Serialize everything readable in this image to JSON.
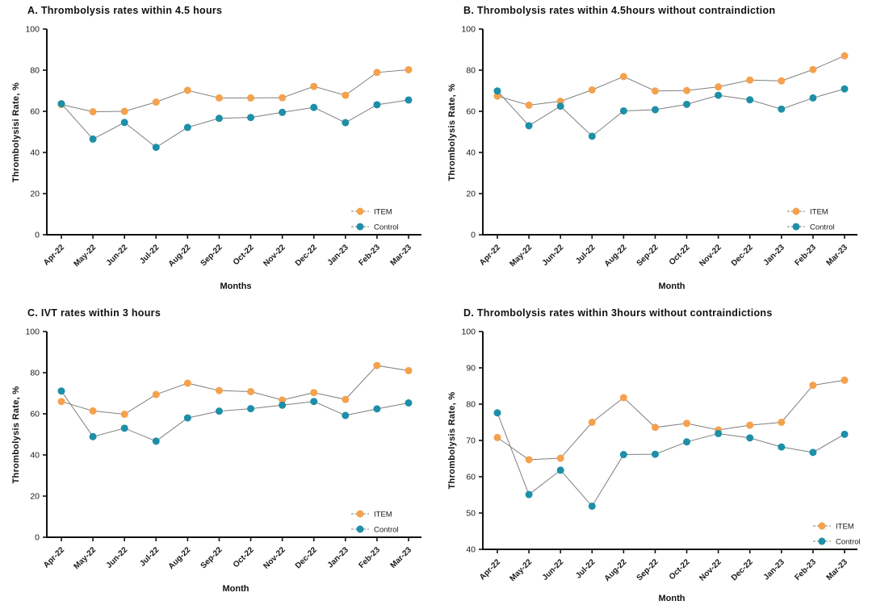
{
  "figure": {
    "background": "#ffffff"
  },
  "colors": {
    "item": "#F5A14D",
    "control": "#1D8FA8",
    "connector": "#7f7f7f",
    "axis": "#111111"
  },
  "chart_data": [
    {
      "type": "line",
      "panel": "A",
      "title": "A. Thrombolysis rates within 4.5 hours",
      "xlabel": "Months",
      "ylabel": "Thrombolysisi Rate, %",
      "ylim": [
        0,
        100
      ],
      "ytick_step": 20,
      "grid": false,
      "legend_position": "bottom-right",
      "categories": [
        "Apr-22",
        "May-22",
        "Jun-22",
        "Jul-22",
        "Aug-22",
        "Sep-22",
        "Oct-22",
        "Nov-22",
        "Dec-22",
        "Jan-23",
        "Feb-23",
        "Mar-23"
      ],
      "series": [
        {
          "name": "ITEM",
          "color": "#F5A14D",
          "values": [
            63.3,
            59.8,
            60.0,
            64.5,
            70.2,
            66.5,
            66.5,
            66.6,
            72.1,
            67.8,
            78.9,
            80.2
          ]
        },
        {
          "name": "Control",
          "color": "#1D8FA8",
          "values": [
            63.7,
            46.5,
            54.6,
            42.5,
            52.2,
            56.6,
            57.0,
            59.5,
            61.9,
            54.5,
            63.2,
            65.5
          ]
        }
      ]
    },
    {
      "type": "line",
      "panel": "B",
      "title": "B. Thrombolysis rates within 4.5hours without contraindiction",
      "xlabel": "Month",
      "ylabel": "Thrombolysis Rate, %",
      "ylim": [
        0,
        100
      ],
      "ytick_step": 20,
      "grid": false,
      "legend_position": "bottom-right",
      "categories": [
        "Apr-22",
        "May-22",
        "Jun-22",
        "Jul-22",
        "Aug-22",
        "Sep-22",
        "Oct-22",
        "Nov-22",
        "Dec-22",
        "Jan-23",
        "Feb-23",
        "Mar-23"
      ],
      "series": [
        {
          "name": "ITEM",
          "color": "#F5A14D",
          "values": [
            67.4,
            63.0,
            64.9,
            70.4,
            76.9,
            69.9,
            70.1,
            71.9,
            75.2,
            74.8,
            80.3,
            87.0
          ]
        },
        {
          "name": "Control",
          "color": "#1D8FA8",
          "values": [
            69.9,
            53.0,
            62.5,
            47.9,
            60.2,
            60.8,
            63.4,
            67.8,
            65.6,
            61.1,
            66.5,
            70.9
          ]
        }
      ]
    },
    {
      "type": "line",
      "panel": "C",
      "title": "C. IVT rates within 3 hours",
      "xlabel": "Month",
      "ylabel": "Thrombolysis Rate, %",
      "ylim": [
        0,
        100
      ],
      "ytick_step": 20,
      "grid": false,
      "legend_position": "bottom-right",
      "categories": [
        "Apr-22",
        "May-22",
        "Jun-22",
        "Jul-22",
        "Aug-22",
        "Sep-22",
        "Oct-22",
        "Nov-22",
        "Dec-22",
        "Jan-23",
        "Feb-23",
        "Mar-23"
      ],
      "series": [
        {
          "name": "ITEM",
          "color": "#F5A14D",
          "values": [
            66.0,
            61.4,
            59.8,
            69.4,
            74.9,
            71.3,
            70.8,
            66.7,
            70.3,
            67.0,
            83.5,
            81.0
          ]
        },
        {
          "name": "Control",
          "color": "#1D8FA8",
          "values": [
            71.1,
            48.9,
            53.0,
            46.7,
            58.0,
            61.3,
            62.5,
            64.2,
            66.0,
            59.2,
            62.4,
            65.3
          ]
        }
      ]
    },
    {
      "type": "line",
      "panel": "D",
      "title": "D. Thrombolysis rates within 3hours without contraindictions",
      "xlabel": "Month",
      "ylabel": "Thrombolysis Rate, %",
      "ylim": [
        40,
        100
      ],
      "ytick_step": 10,
      "grid": false,
      "legend_position": "bottom-right",
      "categories": [
        "Apr-22",
        "May-22",
        "Jun-22",
        "Jul-22",
        "Aug-22",
        "Sep-22",
        "Oct-22",
        "Nov-22",
        "Dec-22",
        "Jan-23",
        "Feb-23",
        "Mar-23"
      ],
      "series": [
        {
          "name": "ITEM",
          "color": "#F5A14D",
          "values": [
            70.8,
            64.7,
            65.1,
            75.0,
            81.8,
            73.6,
            74.7,
            72.9,
            74.2,
            75.0,
            85.2,
            86.6
          ]
        },
        {
          "name": "Control",
          "color": "#1D8FA8",
          "values": [
            77.6,
            55.1,
            61.8,
            51.9,
            66.1,
            66.2,
            69.6,
            71.9,
            70.7,
            68.2,
            66.7,
            71.7
          ]
        }
      ]
    }
  ]
}
